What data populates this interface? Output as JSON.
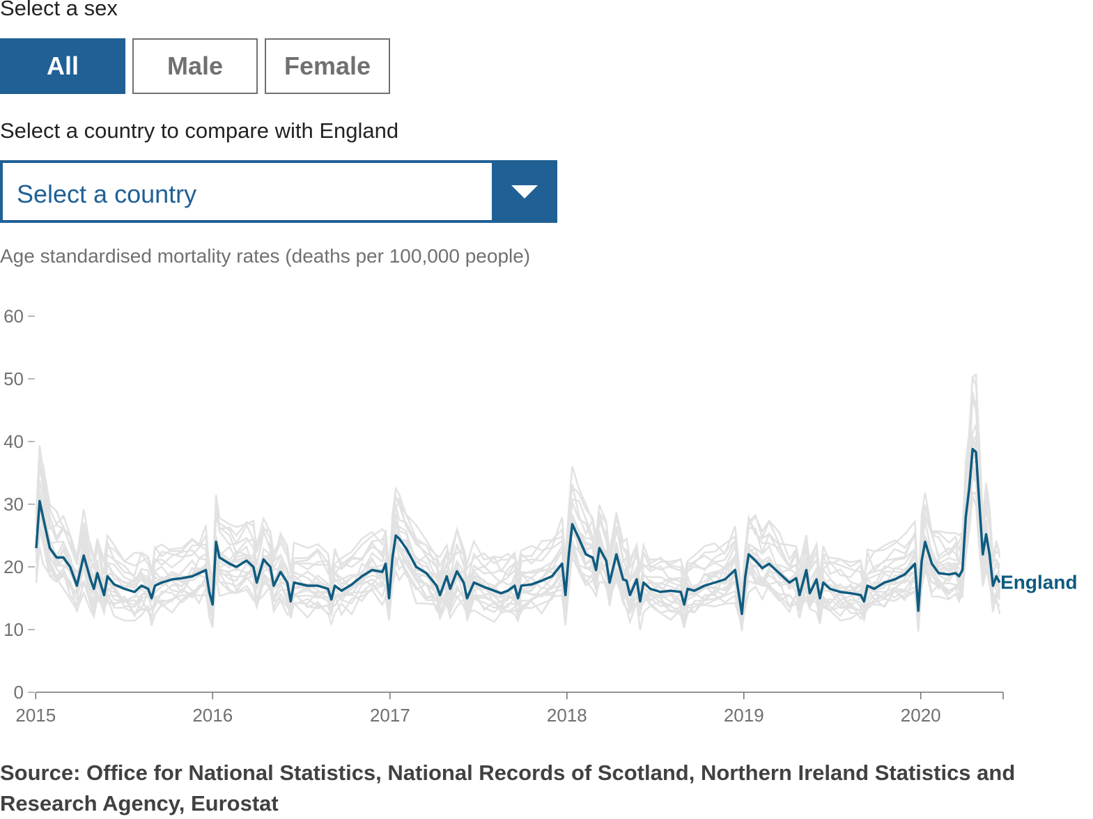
{
  "controls": {
    "sex_label": "Select a sex",
    "sex_options": [
      "All",
      "Male",
      "Female"
    ],
    "sex_selected": "All",
    "country_label": "Select a country to compare with England",
    "country_placeholder": "Select a country"
  },
  "colors": {
    "accent": "#206095",
    "england_line": "#0f5b7f",
    "other_lines": "#e2e2e2",
    "axis": "#707070"
  },
  "chart_data": {
    "type": "line",
    "ylabel": "Age standardised mortality rates (deaths per 100,000 people)",
    "ylim": [
      0,
      60
    ],
    "yticks": [
      0,
      10,
      20,
      30,
      40,
      50,
      60
    ],
    "xlim": [
      "2015-01-02",
      "2020-06-19"
    ],
    "xticks": [
      "2015",
      "2016",
      "2017",
      "2018",
      "2019",
      "2020"
    ],
    "grid": false,
    "legend": "inline label at end of series",
    "highlight_series": {
      "name": "England",
      "points": [
        [
          "2015-01-02",
          23
        ],
        [
          "2015-01-09",
          30.5
        ],
        [
          "2015-01-16",
          28
        ],
        [
          "2015-01-30",
          23
        ],
        [
          "2015-02-13",
          21.5
        ],
        [
          "2015-02-27",
          21.5
        ],
        [
          "2015-03-13",
          20
        ],
        [
          "2015-03-27",
          17
        ],
        [
          "2015-04-10",
          21.8
        ],
        [
          "2015-04-24",
          18
        ],
        [
          "2015-05-01",
          16.5
        ],
        [
          "2015-05-08",
          19
        ],
        [
          "2015-05-22",
          15.5
        ],
        [
          "2015-05-29",
          18.5
        ],
        [
          "2015-06-12",
          17.2
        ],
        [
          "2015-07-03",
          16.5
        ],
        [
          "2015-07-24",
          16
        ],
        [
          "2015-08-07",
          17
        ],
        [
          "2015-08-21",
          16.5
        ],
        [
          "2015-08-28",
          15
        ],
        [
          "2015-09-04",
          17
        ],
        [
          "2015-09-18",
          17.5
        ],
        [
          "2015-10-09",
          18
        ],
        [
          "2015-10-30",
          18.2
        ],
        [
          "2015-11-20",
          18.5
        ],
        [
          "2015-12-04",
          19
        ],
        [
          "2015-12-18",
          19.5
        ],
        [
          "2015-12-25",
          16
        ],
        [
          "2016-01-01",
          14
        ],
        [
          "2016-01-08",
          24
        ],
        [
          "2016-01-15",
          21.5
        ],
        [
          "2016-02-05",
          20.5
        ],
        [
          "2016-02-19",
          20
        ],
        [
          "2016-03-11",
          21
        ],
        [
          "2016-03-25",
          20
        ],
        [
          "2016-04-01",
          17.5
        ],
        [
          "2016-04-15",
          21.2
        ],
        [
          "2016-04-29",
          20
        ],
        [
          "2016-05-06",
          17
        ],
        [
          "2016-05-20",
          19.2
        ],
        [
          "2016-06-03",
          17.5
        ],
        [
          "2016-06-10",
          14.5
        ],
        [
          "2016-06-17",
          17.5
        ],
        [
          "2016-07-15",
          17
        ],
        [
          "2016-08-05",
          17
        ],
        [
          "2016-08-26",
          16.5
        ],
        [
          "2016-09-02",
          14.8
        ],
        [
          "2016-09-09",
          17
        ],
        [
          "2016-09-23",
          16.2
        ],
        [
          "2016-10-14",
          17.2
        ],
        [
          "2016-11-04",
          18.5
        ],
        [
          "2016-11-25",
          19.5
        ],
        [
          "2016-12-16",
          19.2
        ],
        [
          "2016-12-23",
          20.5
        ],
        [
          "2016-12-30",
          15
        ],
        [
          "2017-01-06",
          21.5
        ],
        [
          "2017-01-13",
          25
        ],
        [
          "2017-01-20",
          24.5
        ],
        [
          "2017-02-03",
          23
        ],
        [
          "2017-02-24",
          20
        ],
        [
          "2017-03-17",
          19
        ],
        [
          "2017-04-07",
          17
        ],
        [
          "2017-04-14",
          15.5
        ],
        [
          "2017-04-28",
          18.5
        ],
        [
          "2017-05-05",
          16.5
        ],
        [
          "2017-05-19",
          19.3
        ],
        [
          "2017-06-02",
          17.5
        ],
        [
          "2017-06-09",
          15
        ],
        [
          "2017-06-23",
          17.5
        ],
        [
          "2017-07-14",
          16.8
        ],
        [
          "2017-08-04",
          16.2
        ],
        [
          "2017-08-18",
          15.8
        ],
        [
          "2017-09-01",
          16.2
        ],
        [
          "2017-09-15",
          17
        ],
        [
          "2017-09-22",
          15
        ],
        [
          "2017-09-29",
          17
        ],
        [
          "2017-10-20",
          17.2
        ],
        [
          "2017-11-10",
          17.8
        ],
        [
          "2017-12-01",
          18.5
        ],
        [
          "2017-12-22",
          20.5
        ],
        [
          "2017-12-29",
          15.5
        ],
        [
          "2018-01-05",
          22
        ],
        [
          "2018-01-12",
          26.8
        ],
        [
          "2018-01-26",
          24.5
        ],
        [
          "2018-02-09",
          22
        ],
        [
          "2018-02-23",
          21.5
        ],
        [
          "2018-03-02",
          19.5
        ],
        [
          "2018-03-09",
          23
        ],
        [
          "2018-03-23",
          21
        ],
        [
          "2018-03-30",
          17.5
        ],
        [
          "2018-04-13",
          22
        ],
        [
          "2018-04-27",
          18
        ],
        [
          "2018-05-04",
          17.8
        ],
        [
          "2018-05-11",
          15.5
        ],
        [
          "2018-05-25",
          18
        ],
        [
          "2018-06-01",
          14.5
        ],
        [
          "2018-06-08",
          17.5
        ],
        [
          "2018-06-22",
          16.5
        ],
        [
          "2018-07-13",
          16
        ],
        [
          "2018-08-03",
          16.2
        ],
        [
          "2018-08-24",
          16
        ],
        [
          "2018-08-31",
          14
        ],
        [
          "2018-09-07",
          16.5
        ],
        [
          "2018-09-21",
          16.2
        ],
        [
          "2018-10-12",
          17
        ],
        [
          "2018-11-02",
          17.5
        ],
        [
          "2018-11-23",
          18
        ],
        [
          "2018-12-14",
          19.5
        ],
        [
          "2018-12-28",
          12.5
        ],
        [
          "2019-01-04",
          18.5
        ],
        [
          "2019-01-11",
          22
        ],
        [
          "2019-01-25",
          21
        ],
        [
          "2019-02-08",
          19.8
        ],
        [
          "2019-02-22",
          20.5
        ],
        [
          "2019-03-15",
          19
        ],
        [
          "2019-04-05",
          17.5
        ],
        [
          "2019-04-19",
          18.2
        ],
        [
          "2019-04-26",
          15.5
        ],
        [
          "2019-05-10",
          19.5
        ],
        [
          "2019-05-17",
          15.8
        ],
        [
          "2019-05-31",
          18
        ],
        [
          "2019-06-07",
          15
        ],
        [
          "2019-06-14",
          17.5
        ],
        [
          "2019-06-28",
          16.5
        ],
        [
          "2019-07-19",
          16
        ],
        [
          "2019-08-09",
          15.8
        ],
        [
          "2019-08-30",
          15.5
        ],
        [
          "2019-09-06",
          14.5
        ],
        [
          "2019-09-13",
          17
        ],
        [
          "2019-09-27",
          16.5
        ],
        [
          "2019-10-18",
          17.5
        ],
        [
          "2019-11-08",
          18
        ],
        [
          "2019-11-29",
          18.8
        ],
        [
          "2019-12-20",
          20.5
        ],
        [
          "2019-12-27",
          13
        ],
        [
          "2020-01-03",
          21
        ],
        [
          "2020-01-10",
          24
        ],
        [
          "2020-01-24",
          20.5
        ],
        [
          "2020-02-07",
          19
        ],
        [
          "2020-02-28",
          18.8
        ],
        [
          "2020-03-13",
          19
        ],
        [
          "2020-03-20",
          18.5
        ],
        [
          "2020-03-27",
          19.5
        ],
        [
          "2020-04-03",
          28
        ],
        [
          "2020-04-10",
          32.5
        ],
        [
          "2020-04-17",
          38.8
        ],
        [
          "2020-04-24",
          38.3
        ],
        [
          "2020-05-01",
          30
        ],
        [
          "2020-05-08",
          22
        ],
        [
          "2020-05-15",
          25.2
        ],
        [
          "2020-05-22",
          22
        ],
        [
          "2020-05-29",
          17
        ],
        [
          "2020-06-05",
          18.5
        ],
        [
          "2020-06-12",
          17.5
        ]
      ]
    },
    "background_series_note": "Comparison countries (unlabelled)",
    "source": "Source: Office for National Statistics, National Records of Scotland, Northern Ireland Statistics and Research Agency, Eurostat"
  }
}
